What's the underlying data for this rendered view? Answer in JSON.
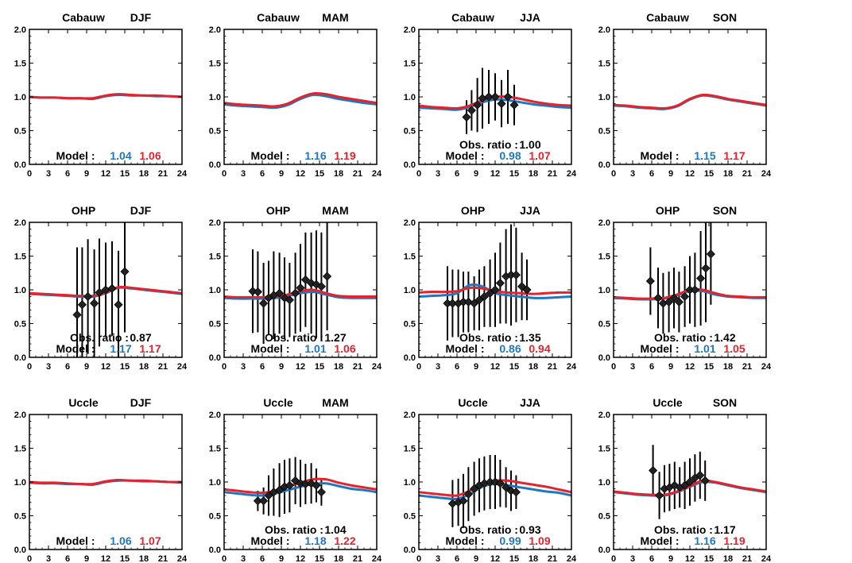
{
  "figure": {
    "colors": {
      "model_a": "#1f77c0",
      "model_b": "#e3232e",
      "obs": "#000000"
    },
    "x_ticks": [
      0,
      3,
      6,
      9,
      12,
      15,
      18,
      21,
      24
    ],
    "y_ticks": [
      "0.0",
      "0.5",
      "1.0",
      "1.5",
      "2.0"
    ],
    "model_label": "Model :",
    "obs_label": "Obs. ratio :"
  },
  "chart_data": [
    {
      "type": "line",
      "station": "Cabauw",
      "season": "DJF",
      "xlim": [
        0,
        24
      ],
      "ylim": [
        0,
        2
      ],
      "x": [
        0,
        2,
        4,
        6,
        8,
        10,
        12,
        14,
        16,
        18,
        20,
        22,
        24
      ],
      "series": [
        {
          "values": [
            1.0,
            0.99,
            0.99,
            0.98,
            0.98,
            0.97,
            1.01,
            1.03,
            1.02,
            1.02,
            1.01,
            1.01,
            1.0
          ]
        },
        {
          "values": [
            1.0,
            0.99,
            0.99,
            0.98,
            0.98,
            0.98,
            1.02,
            1.04,
            1.03,
            1.02,
            1.02,
            1.01,
            1.0
          ]
        }
      ],
      "model_ratios": [
        "1.04",
        "1.06"
      ],
      "obs_ratio": null,
      "obs": null
    },
    {
      "type": "line",
      "station": "Cabauw",
      "season": "MAM",
      "xlim": [
        0,
        24
      ],
      "ylim": [
        0,
        2
      ],
      "x": [
        0,
        2,
        4,
        6,
        8,
        10,
        12,
        14,
        16,
        18,
        20,
        22,
        24
      ],
      "series": [
        {
          "values": [
            0.89,
            0.87,
            0.86,
            0.85,
            0.84,
            0.88,
            0.97,
            1.03,
            1.01,
            0.97,
            0.94,
            0.91,
            0.89
          ]
        },
        {
          "values": [
            0.91,
            0.89,
            0.88,
            0.87,
            0.86,
            0.9,
            0.99,
            1.05,
            1.04,
            1.0,
            0.97,
            0.94,
            0.91
          ]
        }
      ],
      "model_ratios": [
        "1.16",
        "1.19"
      ],
      "obs_ratio": null,
      "obs": null
    },
    {
      "type": "line",
      "station": "Cabauw",
      "season": "JJA",
      "xlim": [
        0,
        24
      ],
      "ylim": [
        0,
        2
      ],
      "x": [
        0,
        2,
        4,
        6,
        8,
        10,
        12,
        14,
        16,
        18,
        20,
        22,
        24
      ],
      "series": [
        {
          "values": [
            0.84,
            0.83,
            0.82,
            0.81,
            0.85,
            0.92,
            0.96,
            0.95,
            0.92,
            0.89,
            0.87,
            0.85,
            0.84
          ]
        },
        {
          "values": [
            0.87,
            0.85,
            0.84,
            0.83,
            0.87,
            0.95,
            1.0,
            1.0,
            0.97,
            0.93,
            0.9,
            0.88,
            0.87
          ]
        }
      ],
      "model_ratios": [
        "0.98",
        "1.07"
      ],
      "obs_ratio": "1.00",
      "obs": {
        "x": [
          7.5,
          8.3,
          9.2,
          10,
          11,
          12,
          13,
          14,
          15
        ],
        "y": [
          0.7,
          0.8,
          0.88,
          0.98,
          1.0,
          1.0,
          0.9,
          1.0,
          0.88
        ],
        "err": [
          0.25,
          0.3,
          0.4,
          0.45,
          0.4,
          0.35,
          0.35,
          0.4,
          0.3
        ]
      }
    },
    {
      "type": "line",
      "station": "Cabauw",
      "season": "SON",
      "xlim": [
        0,
        24
      ],
      "ylim": [
        0,
        2
      ],
      "x": [
        0,
        2,
        4,
        6,
        8,
        10,
        12,
        14,
        16,
        18,
        20,
        22,
        24
      ],
      "series": [
        {
          "values": [
            0.87,
            0.86,
            0.84,
            0.83,
            0.82,
            0.86,
            0.96,
            1.02,
            1.0,
            0.96,
            0.93,
            0.9,
            0.87
          ]
        },
        {
          "values": [
            0.88,
            0.87,
            0.85,
            0.84,
            0.83,
            0.87,
            0.97,
            1.03,
            1.01,
            0.97,
            0.94,
            0.91,
            0.88
          ]
        }
      ],
      "model_ratios": [
        "1.15",
        "1.17"
      ],
      "obs_ratio": null,
      "obs": null
    },
    {
      "type": "line",
      "station": "OHP",
      "season": "DJF",
      "xlim": [
        0,
        24
      ],
      "ylim": [
        0,
        2
      ],
      "x": [
        0,
        2,
        4,
        6,
        8,
        10,
        12,
        14,
        16,
        18,
        20,
        22,
        24
      ],
      "series": [
        {
          "values": [
            0.94,
            0.93,
            0.92,
            0.91,
            0.9,
            0.9,
            0.95,
            1.03,
            1.02,
            1.0,
            0.98,
            0.96,
            0.94
          ]
        },
        {
          "values": [
            0.95,
            0.94,
            0.93,
            0.92,
            0.91,
            0.91,
            0.96,
            1.04,
            1.03,
            1.01,
            0.99,
            0.97,
            0.95
          ]
        }
      ],
      "model_ratios": [
        "1.17",
        "1.17"
      ],
      "obs_ratio": "0.87",
      "obs": {
        "x": [
          7.5,
          8.3,
          9.2,
          10.2,
          11,
          12,
          13,
          14,
          15
        ],
        "y": [
          0.63,
          0.78,
          0.9,
          0.8,
          0.96,
          1.0,
          1.02,
          0.78,
          1.27
        ],
        "err": [
          1.0,
          0.85,
          0.85,
          0.8,
          0.8,
          0.7,
          0.7,
          0.8,
          0.9
        ]
      }
    },
    {
      "type": "line",
      "station": "OHP",
      "season": "MAM",
      "xlim": [
        0,
        24
      ],
      "ylim": [
        0,
        2
      ],
      "x": [
        0,
        2,
        4,
        6,
        8,
        10,
        12,
        14,
        16,
        18,
        20,
        22,
        24
      ],
      "series": [
        {
          "values": [
            0.88,
            0.87,
            0.87,
            0.87,
            0.88,
            0.91,
            0.95,
            0.97,
            0.93,
            0.89,
            0.88,
            0.88,
            0.88
          ]
        },
        {
          "values": [
            0.9,
            0.89,
            0.89,
            0.89,
            0.9,
            0.93,
            0.98,
            1.0,
            0.95,
            0.91,
            0.9,
            0.9,
            0.9
          ]
        }
      ],
      "model_ratios": [
        "1.01",
        "1.06"
      ],
      "obs_ratio": "1.27",
      "obs": {
        "x": [
          4.5,
          5.3,
          6.2,
          7,
          7.8,
          8.7,
          9.5,
          10.3,
          11.2,
          12,
          12.8,
          13.7,
          14.5,
          15.3,
          16.2
        ],
        "y": [
          0.98,
          0.97,
          0.8,
          0.88,
          0.92,
          0.95,
          0.88,
          0.85,
          0.95,
          1.03,
          1.15,
          1.1,
          1.08,
          1.05,
          1.2
        ],
        "err": [
          0.62,
          0.6,
          0.6,
          0.55,
          0.65,
          0.6,
          0.6,
          0.55,
          0.6,
          0.65,
          0.7,
          0.75,
          0.8,
          0.8,
          0.8
        ]
      }
    },
    {
      "type": "line",
      "station": "OHP",
      "season": "JJA",
      "xlim": [
        0,
        24
      ],
      "ylim": [
        0,
        2
      ],
      "x": [
        0,
        2,
        4,
        6,
        8,
        10,
        12,
        14,
        16,
        18,
        20,
        22,
        24
      ],
      "series": [
        {
          "values": [
            0.9,
            0.91,
            0.92,
            0.95,
            1.07,
            1.05,
            0.95,
            0.92,
            0.9,
            0.88,
            0.88,
            0.89,
            0.9
          ]
        },
        {
          "values": [
            0.96,
            0.97,
            0.97,
            0.98,
            1.03,
            1.02,
            0.98,
            0.96,
            0.95,
            0.94,
            0.95,
            0.96,
            0.96
          ]
        }
      ],
      "model_ratios": [
        "0.86",
        "0.94"
      ],
      "obs_ratio": "1.35",
      "obs": {
        "x": [
          4.5,
          5.3,
          6.2,
          7,
          7.8,
          8.7,
          9.5,
          10.3,
          11.2,
          12,
          12.8,
          13.7,
          14.5,
          15.3,
          16.2,
          17
        ],
        "y": [
          0.8,
          0.8,
          0.8,
          0.82,
          0.82,
          0.8,
          0.85,
          0.9,
          0.95,
          1.0,
          1.1,
          1.2,
          1.22,
          1.22,
          1.05,
          1.0
        ],
        "err": [
          0.55,
          0.5,
          0.5,
          0.45,
          0.45,
          0.4,
          0.45,
          0.45,
          0.5,
          0.55,
          0.6,
          0.7,
          0.75,
          0.7,
          0.5,
          0.45
        ]
      }
    },
    {
      "type": "line",
      "station": "OHP",
      "season": "SON",
      "xlim": [
        0,
        24
      ],
      "ylim": [
        0,
        2
      ],
      "x": [
        0,
        2,
        4,
        6,
        8,
        10,
        12,
        14,
        16,
        18,
        20,
        22,
        24
      ],
      "series": [
        {
          "values": [
            0.88,
            0.87,
            0.86,
            0.86,
            0.87,
            0.92,
            0.98,
            0.98,
            0.93,
            0.9,
            0.89,
            0.88,
            0.88
          ]
        },
        {
          "values": [
            0.89,
            0.88,
            0.87,
            0.87,
            0.88,
            0.93,
            1.0,
            1.0,
            0.95,
            0.91,
            0.9,
            0.89,
            0.89
          ]
        }
      ],
      "model_ratios": [
        "1.01",
        "1.05"
      ],
      "obs_ratio": "1.42",
      "obs": {
        "x": [
          5.8,
          7,
          7.8,
          8.7,
          9.5,
          10.3,
          11.2,
          12,
          12.8,
          13.7,
          14.5,
          15.3
        ],
        "y": [
          1.13,
          0.88,
          0.8,
          0.82,
          0.88,
          0.82,
          0.9,
          1.0,
          1.0,
          1.17,
          1.32,
          1.53
        ],
        "err": [
          0.5,
          0.45,
          0.45,
          0.45,
          0.45,
          0.45,
          0.45,
          0.5,
          0.55,
          0.7,
          0.8,
          0.75
        ]
      }
    },
    {
      "type": "line",
      "station": "Uccle",
      "season": "DJF",
      "xlim": [
        0,
        24
      ],
      "ylim": [
        0,
        2
      ],
      "x": [
        0,
        2,
        4,
        6,
        8,
        10,
        12,
        14,
        16,
        18,
        20,
        22,
        24
      ],
      "series": [
        {
          "values": [
            0.99,
            0.98,
            0.98,
            0.97,
            0.97,
            0.96,
            1.0,
            1.02,
            1.02,
            1.01,
            1.01,
            1.0,
            0.99
          ]
        },
        {
          "values": [
            1.0,
            0.99,
            0.99,
            0.98,
            0.97,
            0.97,
            1.01,
            1.03,
            1.02,
            1.02,
            1.01,
            1.0,
            1.0
          ]
        }
      ],
      "model_ratios": [
        "1.06",
        "1.07"
      ],
      "obs_ratio": null,
      "obs": null
    },
    {
      "type": "line",
      "station": "Uccle",
      "season": "MAM",
      "xlim": [
        0,
        24
      ],
      "ylim": [
        0,
        2
      ],
      "x": [
        0,
        2,
        4,
        6,
        8,
        10,
        12,
        14,
        16,
        18,
        20,
        22,
        24
      ],
      "series": [
        {
          "values": [
            0.85,
            0.83,
            0.81,
            0.8,
            0.83,
            0.88,
            0.93,
            0.97,
            0.98,
            0.94,
            0.9,
            0.88,
            0.85
          ]
        },
        {
          "values": [
            0.89,
            0.87,
            0.85,
            0.84,
            0.87,
            0.93,
            0.99,
            1.04,
            1.04,
            0.99,
            0.95,
            0.92,
            0.89
          ]
        }
      ],
      "model_ratios": [
        "1.18",
        "1.22"
      ],
      "obs_ratio": "1.04",
      "obs": {
        "x": [
          5.3,
          6.2,
          7,
          7.8,
          8.7,
          9.5,
          10.3,
          11.2,
          12,
          12.8,
          13.7,
          14.5,
          15.3
        ],
        "y": [
          0.72,
          0.72,
          0.8,
          0.85,
          0.88,
          0.93,
          0.95,
          1.02,
          0.98,
          0.97,
          0.98,
          0.95,
          0.85
        ],
        "err": [
          0.15,
          0.2,
          0.3,
          0.35,
          0.4,
          0.4,
          0.4,
          0.35,
          0.35,
          0.3,
          0.3,
          0.25,
          0.2
        ]
      }
    },
    {
      "type": "line",
      "station": "Uccle",
      "season": "JJA",
      "xlim": [
        0,
        24
      ],
      "ylim": [
        0,
        2
      ],
      "x": [
        0,
        2,
        4,
        6,
        8,
        10,
        12,
        14,
        16,
        18,
        20,
        22,
        24
      ],
      "series": [
        {
          "values": [
            0.8,
            0.78,
            0.76,
            0.75,
            0.82,
            0.93,
            0.97,
            0.95,
            0.92,
            0.89,
            0.86,
            0.84,
            0.8
          ]
        },
        {
          "values": [
            0.85,
            0.83,
            0.81,
            0.8,
            0.87,
            0.97,
            1.02,
            1.02,
            0.99,
            0.96,
            0.93,
            0.89,
            0.85
          ]
        }
      ],
      "model_ratios": [
        "0.99",
        "1.09"
      ],
      "obs_ratio": "0.93",
      "obs": {
        "x": [
          5.3,
          6.2,
          7,
          7.8,
          8.7,
          9.5,
          10.3,
          11.2,
          12,
          12.8,
          13.7,
          14.5,
          15.3
        ],
        "y": [
          0.68,
          0.7,
          0.72,
          0.82,
          0.9,
          0.95,
          0.98,
          1.0,
          1.0,
          0.98,
          0.92,
          0.87,
          0.85
        ],
        "err": [
          0.35,
          0.35,
          0.4,
          0.4,
          0.4,
          0.4,
          0.4,
          0.4,
          0.4,
          0.35,
          0.3,
          0.3,
          0.25
        ]
      }
    },
    {
      "type": "line",
      "station": "Uccle",
      "season": "SON",
      "xlim": [
        0,
        24
      ],
      "ylim": [
        0,
        2
      ],
      "x": [
        0,
        2,
        4,
        6,
        8,
        10,
        12,
        14,
        16,
        18,
        20,
        22,
        24
      ],
      "series": [
        {
          "values": [
            0.85,
            0.83,
            0.81,
            0.8,
            0.8,
            0.85,
            0.93,
            1.0,
            0.99,
            0.95,
            0.91,
            0.88,
            0.85
          ]
        },
        {
          "values": [
            0.86,
            0.84,
            0.82,
            0.81,
            0.81,
            0.86,
            0.94,
            1.02,
            1.0,
            0.96,
            0.92,
            0.89,
            0.86
          ]
        }
      ],
      "model_ratios": [
        "1.16",
        "1.19"
      ],
      "obs_ratio": "1.17",
      "obs": {
        "x": [
          6.2,
          7.2,
          8,
          8.8,
          9.6,
          10.4,
          11.2,
          12,
          12.8,
          13.6,
          14.4
        ],
        "y": [
          1.17,
          0.8,
          0.9,
          0.92,
          0.95,
          0.92,
          0.95,
          1.0,
          1.06,
          1.1,
          1.02
        ],
        "err": [
          0.38,
          0.35,
          0.35,
          0.35,
          0.35,
          0.3,
          0.35,
          0.35,
          0.35,
          0.35,
          0.3
        ]
      }
    }
  ]
}
